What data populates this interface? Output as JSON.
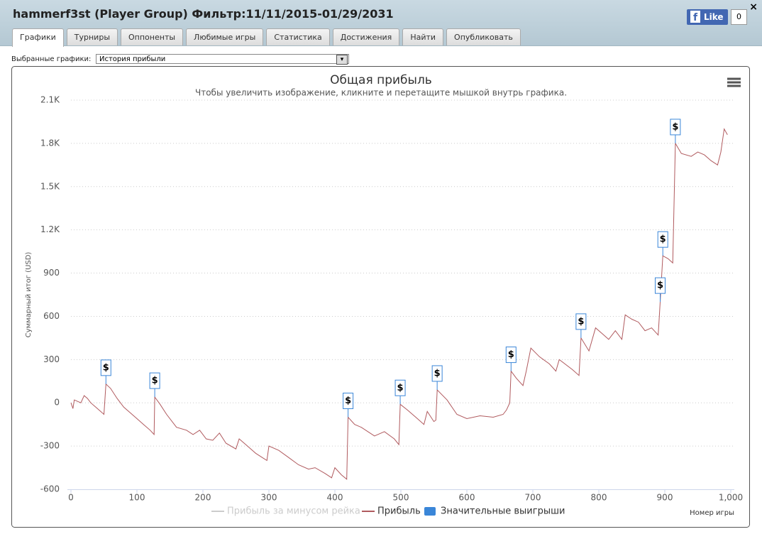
{
  "header": {
    "title": "hammerf3st (Player Group) Фильтр:11/11/2015-01/29/2031",
    "close": "×",
    "like": "Like",
    "like_count": "0"
  },
  "tabs": [
    "Графики",
    "Турниры",
    "Оппоненты",
    "Любимые игры",
    "Статистика",
    "Достижения",
    "Найти",
    "Опубликовать"
  ],
  "selector": {
    "label": "Выбранные графики:",
    "value": "История прибыли"
  },
  "chart_data": {
    "type": "line",
    "title": "Общая прибыль",
    "subtitle": "Чтобы увеличить изображение, кликните и перетащите мышкой внутрь графика.",
    "y_label": "Суммарный итог (USD)",
    "x_label": "Номер игры",
    "marker_label": "$",
    "x": [
      0,
      3,
      5,
      10,
      15,
      20,
      25,
      30,
      40,
      50,
      53,
      60,
      70,
      80,
      90,
      100,
      110,
      120,
      126,
      127,
      135,
      145,
      160,
      175,
      185,
      195,
      205,
      215,
      225,
      235,
      250,
      255,
      265,
      280,
      290,
      297,
      300,
      315,
      330,
      345,
      360,
      370,
      385,
      395,
      400,
      410,
      418,
      420,
      430,
      440,
      460,
      475,
      490,
      497,
      499,
      510,
      525,
      535,
      540,
      550,
      553,
      555,
      570,
      585,
      600,
      620,
      640,
      655,
      660,
      665,
      667,
      675,
      685,
      690,
      697,
      710,
      725,
      735,
      740,
      760,
      770,
      773,
      785,
      795,
      805,
      815,
      825,
      835,
      840,
      850,
      860,
      870,
      880,
      890,
      893,
      897,
      905,
      912,
      916,
      925,
      940,
      950,
      960,
      970,
      980,
      985,
      990,
      995
    ],
    "series": [
      {
        "name": "Прибыль за минусом рейка",
        "color": "#cccccc"
      },
      {
        "name": "Прибыль",
        "color": "#b05a5e",
        "values": [
          0,
          -40,
          20,
          10,
          0,
          50,
          30,
          0,
          -40,
          -80,
          130,
          100,
          30,
          -30,
          -70,
          -110,
          -150,
          -190,
          -220,
          40,
          -10,
          -80,
          -170,
          -190,
          -220,
          -190,
          -250,
          -260,
          -210,
          -280,
          -320,
          -250,
          -290,
          -350,
          -380,
          -400,
          -300,
          -330,
          -380,
          -430,
          -460,
          -450,
          -490,
          -520,
          -450,
          -500,
          -530,
          -100,
          -150,
          -170,
          -230,
          -200,
          -250,
          -290,
          -10,
          -50,
          -110,
          -150,
          -60,
          -130,
          -120,
          90,
          20,
          -80,
          -110,
          -90,
          -100,
          -80,
          -50,
          0,
          220,
          170,
          120,
          220,
          380,
          320,
          270,
          220,
          300,
          230,
          190,
          450,
          360,
          520,
          480,
          440,
          500,
          440,
          610,
          580,
          560,
          500,
          520,
          470,
          700,
          1020,
          1000,
          970,
          1800,
          1730,
          1710,
          1740,
          1720,
          1680,
          1650,
          1740,
          1900,
          1860
        ]
      },
      {
        "name": "Значительные выигрыши",
        "color": "#3a86d8",
        "x": [
          53,
          127,
          420,
          499,
          555,
          667,
          773,
          893,
          897,
          916
        ],
        "values": [
          130,
          40,
          -100,
          -10,
          90,
          220,
          450,
          700,
          1020,
          1800
        ]
      }
    ],
    "xlim": [
      0,
      1000
    ],
    "xticks": [
      0,
      100,
      200,
      300,
      400,
      500,
      600,
      700,
      800,
      900,
      {
        "value": 1000,
        "label": "1,000"
      }
    ],
    "ylim": [
      -600,
      2100
    ],
    "yticks": [
      -600,
      -300,
      0,
      300,
      600,
      900,
      {
        "value": 1200,
        "label": "1.2K"
      },
      {
        "value": 1500,
        "label": "1.5K"
      },
      {
        "value": 1800,
        "label": "1.8K"
      },
      {
        "value": 2100,
        "label": "2.1K"
      }
    ],
    "grid": true
  }
}
